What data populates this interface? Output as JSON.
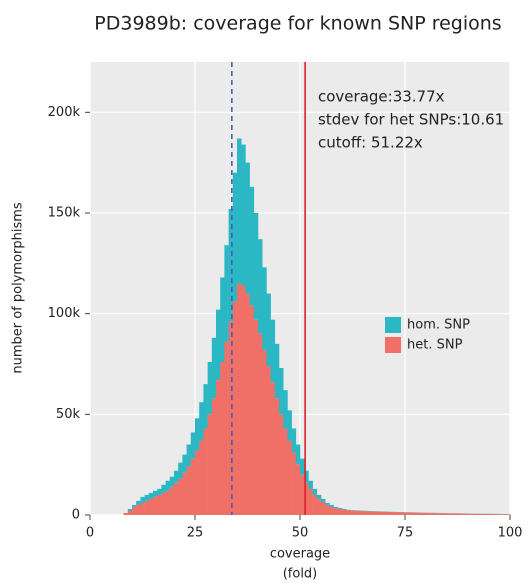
{
  "chart_data": {
    "type": "stacked_histogram",
    "title": "PD3989b: coverage for known SNP regions",
    "xlabel": "coverage",
    "xlabel_unit": "(fold)",
    "ylabel": "number of polymorphisms",
    "bins": [
      0,
      1,
      2,
      3,
      4,
      5,
      6,
      7,
      8,
      9,
      10,
      11,
      12,
      13,
      14,
      15,
      16,
      17,
      18,
      19,
      20,
      21,
      22,
      23,
      24,
      25,
      26,
      27,
      28,
      29,
      30,
      31,
      32,
      33,
      34,
      35,
      36,
      37,
      38,
      39,
      40,
      41,
      42,
      43,
      44,
      45,
      46,
      47,
      48,
      49,
      50,
      51,
      52,
      53,
      54,
      55,
      56,
      57,
      58,
      59,
      60,
      61,
      62,
      63,
      64,
      65,
      66,
      67,
      68,
      69,
      70,
      71,
      72,
      73,
      74,
      75,
      76,
      77,
      78,
      79,
      80,
      81,
      82,
      83,
      84,
      85,
      86,
      87,
      88,
      89,
      90,
      91,
      92,
      93,
      94,
      95,
      96,
      97,
      98,
      99,
      100
    ],
    "series": [
      {
        "name": "hom. SNP",
        "color": "#2bb8c4",
        "values": [
          0,
          0,
          0,
          0,
          0,
          0,
          0,
          0,
          0,
          1000,
          1000,
          2000,
          3000,
          3000,
          3000,
          3000,
          3000,
          4000,
          5000,
          5000,
          6000,
          8000,
          9000,
          11000,
          13000,
          16000,
          19000,
          22000,
          26000,
          30000,
          35000,
          42000,
          48000,
          56000,
          64000,
          72000,
          70000,
          65000,
          59000,
          53000,
          47000,
          41000,
          36000,
          31000,
          27000,
          23000,
          19000,
          15000,
          12000,
          10000,
          8000,
          6000,
          4000,
          3000,
          2000,
          1500,
          1000,
          1000,
          600,
          500,
          300,
          200,
          200,
          200,
          200,
          200,
          200,
          200,
          200,
          200,
          200,
          100,
          100,
          100,
          100,
          100,
          100,
          100,
          100,
          100,
          100,
          100,
          100,
          100,
          100,
          100,
          100,
          100,
          100,
          100,
          100,
          100,
          100,
          100,
          100,
          100,
          100,
          100,
          100,
          100
        ]
      },
      {
        "name": "het. SNP",
        "color": "#f07067",
        "values": [
          0,
          0,
          0,
          0,
          0,
          0,
          0,
          0,
          1000,
          2000,
          4000,
          5000,
          6000,
          7000,
          8000,
          9000,
          10000,
          11000,
          12000,
          14000,
          16000,
          18000,
          21000,
          24000,
          28000,
          32000,
          37000,
          43000,
          50000,
          58000,
          67000,
          76000,
          86000,
          96000,
          106000,
          115000,
          114000,
          110000,
          104000,
          97000,
          90000,
          82000,
          74000,
          66000,
          58000,
          50000,
          43000,
          37000,
          31000,
          25000,
          20000,
          16000,
          13000,
          10000,
          8000,
          6500,
          5000,
          4000,
          3400,
          3000,
          2700,
          2400,
          2200,
          2100,
          2000,
          1900,
          1800,
          1700,
          1650,
          1600,
          1550,
          1500,
          1450,
          1400,
          1350,
          1300,
          1250,
          1200,
          1150,
          1100,
          1050,
          1000,
          950,
          900,
          850,
          800,
          770,
          740,
          710,
          680,
          650,
          620,
          590,
          560,
          530,
          500,
          470,
          440,
          410,
          380
        ]
      }
    ],
    "vlines": [
      {
        "value": 33.77,
        "color": "#4a5bb5",
        "dashed": true
      },
      {
        "value": 51.22,
        "color": "#e0202a",
        "dashed": false
      }
    ],
    "annotations": [
      "coverage:33.77x",
      "stdev for het SNPs:10.61",
      "cutoff: 51.22x"
    ],
    "xlim": [
      0,
      100
    ],
    "xticks": [
      0,
      25,
      50,
      75,
      100
    ],
    "ylim": [
      0,
      225000
    ],
    "yticks": [
      0,
      {
        "value": 50000,
        "label": "50k"
      },
      {
        "value": 100000,
        "label": "100k"
      },
      {
        "value": 150000,
        "label": "150k"
      },
      {
        "value": 200000,
        "label": "200k"
      }
    ],
    "grid": true,
    "legend": "right"
  }
}
